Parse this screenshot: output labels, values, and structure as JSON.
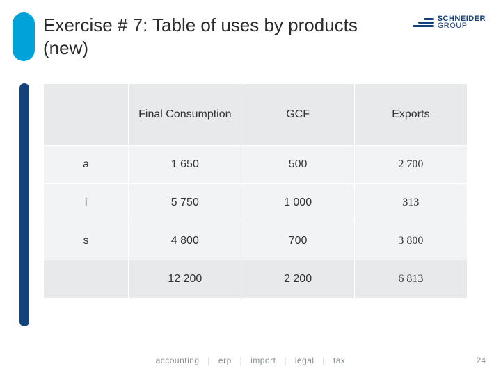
{
  "title": "Exercise # 7: Table of uses by products (new)",
  "logo": {
    "line1": "SCHNEIDER",
    "line2": "GROUP"
  },
  "table": {
    "columns": [
      "",
      "Final Consumption",
      "GCF",
      "Exports"
    ],
    "rows": [
      {
        "label": "a",
        "cells": [
          "1 650",
          "500",
          "2 700"
        ]
      },
      {
        "label": "i",
        "cells": [
          "5 750",
          "1 000",
          "313"
        ]
      },
      {
        "label": "s",
        "cells": [
          "4 800",
          "700",
          "3 800"
        ]
      }
    ],
    "total": {
      "label": "",
      "cells": [
        "12 200",
        "2 200",
        "6 813"
      ]
    },
    "header_bg": "#e7e9eb",
    "cell_bg": "#f2f3f4",
    "border_color": "#ffffff",
    "text_color": "#333333",
    "exports_font": "serif"
  },
  "accent": {
    "top_color": "#00a3d9",
    "side_color": "#13417a"
  },
  "footer": {
    "items": [
      "accounting",
      "erp",
      "import",
      "legal",
      "tax"
    ],
    "separator": "|"
  },
  "page_number": "24"
}
